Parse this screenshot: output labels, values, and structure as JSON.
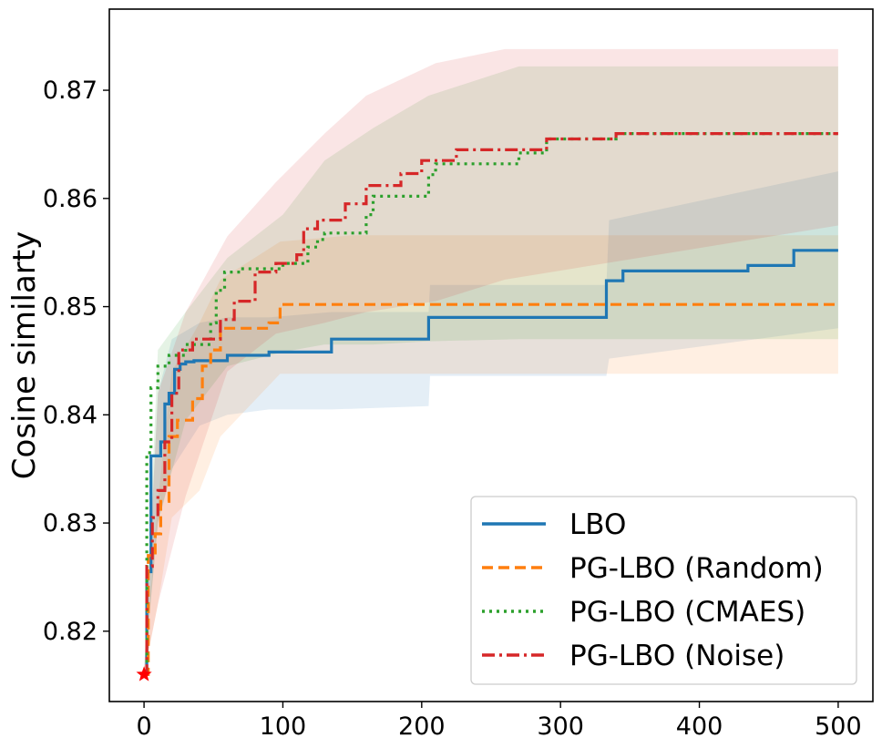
{
  "chart_data": {
    "type": "line",
    "title": "",
    "xlabel": "",
    "ylabel": "Cosine similarty",
    "xlim": [
      -25,
      525
    ],
    "ylim": [
      0.8135,
      0.8775
    ],
    "xticks": [
      0,
      100,
      200,
      300,
      400,
      500
    ],
    "xtick_labels": [
      "0",
      "100",
      "200",
      "300",
      "400",
      "500"
    ],
    "yticks": [
      0.82,
      0.83,
      0.84,
      0.85,
      0.86,
      0.87
    ],
    "ytick_labels": [
      "0.82",
      "0.83",
      "0.84",
      "0.85",
      "0.86",
      "0.87"
    ],
    "grid": false,
    "legend_position": "bottom-right",
    "start_marker": {
      "x": 0,
      "y": 0.816,
      "symbol": "star",
      "color": "#ff0000"
    },
    "series": [
      {
        "name": "LBO",
        "color": "#1f77b4",
        "dash": "solid",
        "x": [
          0,
          2,
          2,
          5,
          5,
          12,
          12,
          15,
          15,
          18,
          18,
          22,
          22,
          26,
          26,
          30,
          30,
          36,
          36,
          60,
          60,
          90,
          90,
          135,
          135,
          205,
          205,
          333,
          333,
          345,
          345,
          435,
          435,
          468,
          468,
          500
        ],
        "values": [
          0.816,
          0.816,
          0.8255,
          0.8255,
          0.8362,
          0.8362,
          0.8375,
          0.8375,
          0.841,
          0.841,
          0.842,
          0.842,
          0.8442,
          0.8442,
          0.8447,
          0.8447,
          0.8449,
          0.8449,
          0.845,
          0.845,
          0.8455,
          0.8455,
          0.8458,
          0.8458,
          0.847,
          0.847,
          0.849,
          0.849,
          0.8524,
          0.8524,
          0.8533,
          0.8533,
          0.8538,
          0.8538,
          0.8552,
          0.8552
        ],
        "band_x": [
          0,
          10,
          20,
          40,
          60,
          90,
          135,
          205,
          206,
          333,
          335,
          500
        ],
        "band_lower": [
          0.816,
          0.83,
          0.835,
          0.839,
          0.84,
          0.8405,
          0.8405,
          0.8408,
          0.8436,
          0.8436,
          0.8452,
          0.848
        ],
        "band_upper": [
          0.816,
          0.842,
          0.847,
          0.8485,
          0.849,
          0.849,
          0.8495,
          0.8495,
          0.852,
          0.852,
          0.858,
          0.8625
        ]
      },
      {
        "name": "PG-LBO (Random)",
        "color": "#ff7f0e",
        "dash": "dashed",
        "x": [
          0,
          3,
          3,
          8,
          8,
          12,
          12,
          18,
          18,
          24,
          24,
          35,
          35,
          42,
          42,
          48,
          48,
          55,
          55,
          90,
          90,
          98,
          98,
          500
        ],
        "values": [
          0.816,
          0.816,
          0.827,
          0.827,
          0.829,
          0.829,
          0.832,
          0.832,
          0.838,
          0.838,
          0.8395,
          0.8395,
          0.8415,
          0.8415,
          0.8445,
          0.8445,
          0.846,
          0.846,
          0.848,
          0.848,
          0.8485,
          0.8485,
          0.8502,
          0.8502
        ],
        "band_x": [
          0,
          10,
          20,
          40,
          55,
          98,
          150,
          500
        ],
        "band_lower": [
          0.816,
          0.8225,
          0.8305,
          0.833,
          0.838,
          0.8438,
          0.8438,
          0.8438
        ],
        "band_upper": [
          0.816,
          0.832,
          0.844,
          0.8485,
          0.8525,
          0.856,
          0.8566,
          0.8566
        ]
      },
      {
        "name": "PG-LBO (CMAES)",
        "color": "#2ca02c",
        "dash": "dotted",
        "x": [
          0,
          2,
          2,
          5,
          5,
          10,
          10,
          18,
          18,
          30,
          30,
          48,
          48,
          52,
          52,
          58,
          58,
          70,
          70,
          100,
          100,
          118,
          118,
          125,
          125,
          130,
          130,
          160,
          160,
          165,
          165,
          205,
          205,
          210,
          210,
          270,
          270,
          290,
          290,
          340,
          340,
          500
        ],
        "values": [
          0.816,
          0.816,
          0.8365,
          0.8365,
          0.8425,
          0.8425,
          0.8445,
          0.8445,
          0.8455,
          0.8455,
          0.8465,
          0.8465,
          0.8485,
          0.8485,
          0.8515,
          0.8515,
          0.8532,
          0.8532,
          0.8535,
          0.8535,
          0.854,
          0.854,
          0.8555,
          0.8555,
          0.8562,
          0.8562,
          0.8568,
          0.8568,
          0.8585,
          0.8585,
          0.8602,
          0.8602,
          0.8622,
          0.8622,
          0.8632,
          0.8632,
          0.8642,
          0.8642,
          0.8655,
          0.8655,
          0.866,
          0.866
        ],
        "band_x": [
          0,
          10,
          30,
          60,
          100,
          130,
          165,
          205,
          270,
          500
        ],
        "band_lower": [
          0.816,
          0.83,
          0.8395,
          0.8445,
          0.8458,
          0.8465,
          0.8465,
          0.8468,
          0.847,
          0.847
        ],
        "band_upper": [
          0.816,
          0.846,
          0.8495,
          0.8545,
          0.8585,
          0.8635,
          0.8665,
          0.8695,
          0.8722,
          0.8722
        ]
      },
      {
        "name": "PG-LBO (Noise)",
        "color": "#d62728",
        "dash": "dashdot",
        "x": [
          0,
          2,
          2,
          6,
          6,
          10,
          10,
          15,
          15,
          20,
          20,
          25,
          25,
          35,
          35,
          55,
          55,
          65,
          65,
          80,
          80,
          95,
          95,
          110,
          110,
          115,
          115,
          125,
          125,
          145,
          145,
          160,
          160,
          185,
          185,
          200,
          200,
          225,
          225,
          290,
          290,
          340,
          340,
          500
        ],
        "values": [
          0.816,
          0.816,
          0.826,
          0.826,
          0.8305,
          0.8305,
          0.833,
          0.833,
          0.8375,
          0.8375,
          0.842,
          0.842,
          0.846,
          0.846,
          0.847,
          0.847,
          0.8488,
          0.8488,
          0.8505,
          0.8505,
          0.8532,
          0.8532,
          0.854,
          0.854,
          0.8548,
          0.8548,
          0.8572,
          0.8572,
          0.858,
          0.858,
          0.8595,
          0.8595,
          0.8612,
          0.8612,
          0.8623,
          0.8623,
          0.8635,
          0.8635,
          0.8645,
          0.8645,
          0.8655,
          0.8655,
          0.866,
          0.866
        ],
        "band_x": [
          0,
          10,
          30,
          60,
          95,
          130,
          160,
          210,
          260,
          500
        ],
        "band_lower": [
          0.816,
          0.8225,
          0.8325,
          0.844,
          0.8475,
          0.8485,
          0.8495,
          0.8505,
          0.8525,
          0.8575
        ],
        "band_upper": [
          0.816,
          0.842,
          0.8495,
          0.8565,
          0.8615,
          0.866,
          0.8695,
          0.8725,
          0.8738,
          0.8738
        ]
      }
    ]
  }
}
